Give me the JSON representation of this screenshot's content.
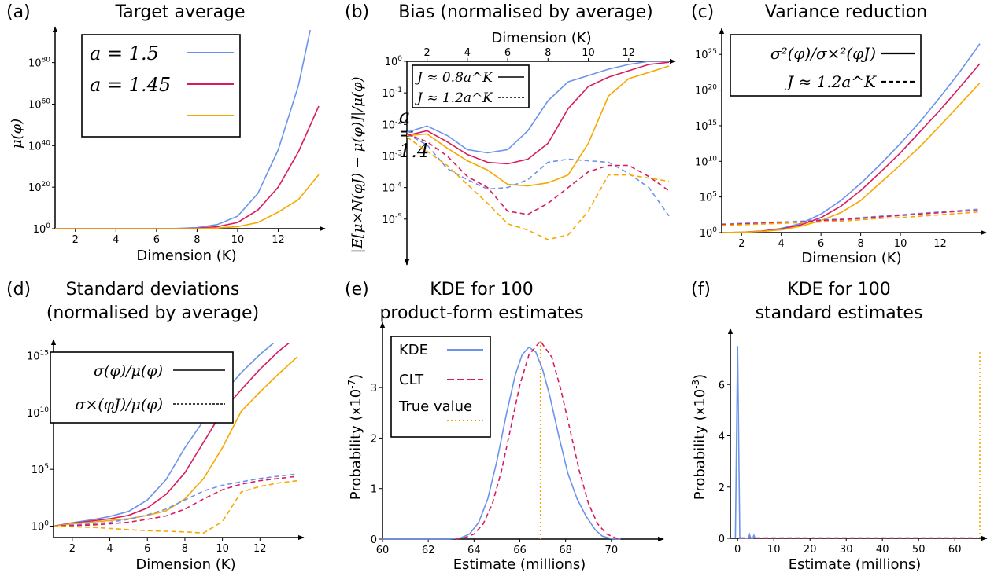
{
  "colors": {
    "blue": "#6b93ec",
    "magenta": "#d81b60",
    "orange": "#f6a800"
  },
  "chart_data": [
    {
      "id": "a",
      "type": "line",
      "panel_label": "(a)",
      "title": "Target average",
      "xlabel": "Dimension (K)",
      "ylabel": "μ(φ)",
      "yscale": "log",
      "xlim": [
        1,
        14
      ],
      "ylim_exp": [
        0,
        95
      ],
      "xticks": [
        "2",
        "4",
        "6",
        "8",
        "10",
        "12"
      ],
      "yticks": [
        {
          "base": "10",
          "exp": "0",
          "v": 0
        },
        {
          "base": "10",
          "exp": "20",
          "v": 20
        },
        {
          "base": "10",
          "exp": "40",
          "v": 40
        },
        {
          "base": "10",
          "exp": "60",
          "v": 60
        },
        {
          "base": "10",
          "exp": "80",
          "v": 80
        }
      ],
      "x": [
        1,
        2,
        3,
        4,
        5,
        6,
        7,
        8,
        9,
        10,
        11,
        12,
        13,
        14
      ],
      "series": [
        {
          "name": "a = 1.5",
          "color": "#6b93ec",
          "dash": "solid",
          "log10_values": [
            0,
            0,
            0,
            0,
            0,
            0,
            0.1,
            0.5,
            2,
            6,
            17,
            38,
            69,
            115
          ]
        },
        {
          "name": "a = 1.45",
          "color": "#d81b60",
          "dash": "solid",
          "log10_values": [
            0,
            0,
            0,
            0,
            0,
            0,
            0,
            0.2,
            1,
            3,
            9,
            20,
            37,
            59
          ]
        },
        {
          "name": "a = 1.4",
          "color": "#f6a800",
          "dash": "solid",
          "log10_values": [
            0,
            0,
            0,
            0,
            0,
            0,
            0,
            0,
            0.3,
            1,
            3,
            8,
            14,
            26
          ]
        }
      ],
      "legend": {
        "position": "top-left",
        "entries": [
          "a = 1.5",
          "a = 1.45",
          "a = 1.4"
        ]
      }
    },
    {
      "id": "b",
      "type": "line",
      "panel_label": "(b)",
      "title": "Bias (normalised by average)",
      "xlabel": "Dimension (K)",
      "xaxis_position": "top",
      "ylabel": "|E[μ×N(φJ) − μ(φ)]|/μ(φ)",
      "yscale": "log",
      "xlim": [
        1,
        14
      ],
      "ylim_exp": [
        -6.3,
        0
      ],
      "xticks": [
        "2",
        "4",
        "6",
        "8",
        "10",
        "12"
      ],
      "yticks": [
        {
          "base": "10",
          "exp": "0",
          "v": 0
        },
        {
          "base": "10",
          "exp": "-1",
          "v": -1
        },
        {
          "base": "10",
          "exp": "-2",
          "v": -2
        },
        {
          "base": "10",
          "exp": "-3",
          "v": -3
        },
        {
          "base": "10",
          "exp": "-4",
          "v": -4
        },
        {
          "base": "10",
          "exp": "-5",
          "v": -5
        }
      ],
      "x": [
        1,
        2,
        3,
        4,
        5,
        6,
        7,
        8,
        9,
        10,
        11,
        12,
        13,
        14
      ],
      "series": [
        {
          "name": "a = 1.5, J ≈ 0.8a^K",
          "color": "#6b93ec",
          "dash": "solid",
          "log10_values": [
            -2.25,
            -2.05,
            -2.35,
            -2.8,
            -2.9,
            -2.8,
            -2.2,
            -1.25,
            -0.65,
            -0.45,
            -0.25,
            -0.1,
            0,
            0
          ]
        },
        {
          "name": "a = 1.45, J ≈ 0.8a^K",
          "color": "#d81b60",
          "dash": "solid",
          "log10_values": [
            -2.35,
            -2.2,
            -2.55,
            -2.95,
            -3.2,
            -3.25,
            -3.1,
            -2.6,
            -1.5,
            -0.8,
            -0.5,
            -0.3,
            -0.1,
            -0.03
          ]
        },
        {
          "name": "a = 1.4, J ≈ 0.8a^K",
          "color": "#f6a800",
          "dash": "solid",
          "log10_values": [
            -2.35,
            -2.3,
            -2.75,
            -3.15,
            -3.45,
            -3.9,
            -3.95,
            -3.85,
            -3.6,
            -2.6,
            -1.1,
            -0.55,
            -0.35,
            -0.15
          ]
        },
        {
          "name": "a = 1.5, J ≈ 1.2a^K",
          "color": "#6b93ec",
          "dash": "dashed",
          "log10_values": [
            -2.3,
            -2.65,
            -3.4,
            -3.75,
            -4.05,
            -4.0,
            -3.75,
            -3.2,
            -3.1,
            -3.15,
            -3.2,
            -3.55,
            -4.0,
            -4.9
          ]
        },
        {
          "name": "a = 1.45, J ≈ 1.2a^K",
          "color": "#d81b60",
          "dash": "dashed",
          "log10_values": [
            -2.3,
            -2.55,
            -3.0,
            -3.65,
            -4.0,
            -4.75,
            -4.85,
            -4.5,
            -4.0,
            -3.5,
            -3.3,
            -3.3,
            -3.65,
            -4.1
          ]
        },
        {
          "name": "a = 1.4, J ≈ 1.2a^K",
          "color": "#f6a800",
          "dash": "dashed",
          "log10_values": [
            -2.4,
            -2.85,
            -3.3,
            -3.9,
            -4.5,
            -5.15,
            -5.35,
            -5.65,
            -5.5,
            -4.75,
            -3.6,
            -3.6,
            -3.7,
            -3.8
          ]
        }
      ],
      "legend": {
        "position": "top-left",
        "entries": [
          "J ≈ 0.8a^K",
          "J ≈ 1.2a^K"
        ]
      }
    },
    {
      "id": "c",
      "type": "line",
      "panel_label": "(c)",
      "title": "Variance reduction",
      "xlabel": "Dimension (K)",
      "yscale": "log",
      "xlim": [
        1,
        14
      ],
      "ylim_exp": [
        0,
        28
      ],
      "xticks": [
        "2",
        "4",
        "6",
        "8",
        "10",
        "12"
      ],
      "yticks": [
        {
          "base": "10",
          "exp": "0",
          "v": 0
        },
        {
          "base": "10",
          "exp": "5",
          "v": 5
        },
        {
          "base": "10",
          "exp": "10",
          "v": 10
        },
        {
          "base": "10",
          "exp": "15",
          "v": 15
        },
        {
          "base": "10",
          "exp": "20",
          "v": 20
        },
        {
          "base": "10",
          "exp": "25",
          "v": 25
        }
      ],
      "x": [
        1,
        2,
        3,
        4,
        5,
        6,
        7,
        8,
        9,
        10,
        11,
        12,
        13,
        14
      ],
      "series": [
        {
          "name": "a = 1.5, σ²(φ)/σ×²(φJ)",
          "color": "#6b93ec",
          "dash": "solid",
          "log10_values": [
            0,
            0.05,
            0.2,
            0.6,
            1.3,
            2.6,
            4.5,
            6.9,
            9.6,
            12.5,
            15.6,
            19,
            22.6,
            26.5
          ]
        },
        {
          "name": "a = 1.45, σ²(φ)/σ×²(φJ)",
          "color": "#d81b60",
          "dash": "solid",
          "log10_values": [
            0,
            0.05,
            0.2,
            0.5,
            1.1,
            2.1,
            3.7,
            5.9,
            8.5,
            11.2,
            14.2,
            17.2,
            20.4,
            23.7
          ]
        },
        {
          "name": "a = 1.4, σ²(φ)/σ×²(φJ)",
          "color": "#f6a800",
          "dash": "solid",
          "log10_values": [
            0,
            0.05,
            0.15,
            0.4,
            0.9,
            1.7,
            2.8,
            4.5,
            7,
            9.5,
            12.1,
            15,
            18,
            21
          ]
        },
        {
          "name": "a = 1.5, J ≈ 1.2a^K",
          "color": "#6b93ec",
          "dash": "dashed",
          "log10_values": [
            1.2,
            1.3,
            1.4,
            1.5,
            1.6,
            1.8,
            1.9,
            2.1,
            2.3,
            2.5,
            2.7,
            2.9,
            3.1,
            3.3
          ]
        },
        {
          "name": "a = 1.45, J ≈ 1.2a^K",
          "color": "#d81b60",
          "dash": "dashed",
          "log10_values": [
            1.1,
            1.2,
            1.3,
            1.4,
            1.5,
            1.7,
            1.8,
            2.0,
            2.2,
            2.4,
            2.6,
            2.8,
            3.0,
            3.1
          ]
        },
        {
          "name": "a = 1.4, J ≈ 1.2a^K",
          "color": "#f6a800",
          "dash": "dashed",
          "log10_values": [
            1.0,
            1.1,
            1.2,
            1.3,
            1.4,
            1.5,
            1.6,
            1.8,
            2.0,
            2.1,
            2.3,
            2.5,
            2.7,
            2.9
          ]
        }
      ],
      "legend": {
        "position": "top-left",
        "entries": [
          "σ²(φ)/σ×²(φJ)",
          "J ≈ 1.2a^K"
        ]
      }
    },
    {
      "id": "d",
      "type": "line",
      "panel_label": "(d)",
      "title": "Standard deviations",
      "subtitle": "(normalised by average)",
      "xlabel": "Dimension (K)",
      "yscale": "log",
      "xlim": [
        1,
        14
      ],
      "ylim_exp": [
        -1,
        16
      ],
      "xticks": [
        "2",
        "4",
        "6",
        "8",
        "10",
        "12"
      ],
      "yticks": [
        {
          "base": "10",
          "exp": "0",
          "v": 0
        },
        {
          "base": "10",
          "exp": "5",
          "v": 5
        },
        {
          "base": "10",
          "exp": "10",
          "v": 10
        },
        {
          "base": "10",
          "exp": "15",
          "v": 15
        }
      ],
      "x": [
        1,
        2,
        3,
        4,
        5,
        6,
        7,
        8,
        9,
        10,
        11,
        12,
        13,
        14
      ],
      "series": [
        {
          "name": "a = 1.5, σ(φ)/μ(φ)",
          "color": "#6b93ec",
          "dash": "solid",
          "log10_values": [
            0,
            0.3,
            0.55,
            0.85,
            1.3,
            2.3,
            4.1,
            6.9,
            9.3,
            11.6,
            13.5,
            15.1,
            16.5,
            17.6
          ]
        },
        {
          "name": "a = 1.45, σ(φ)/μ(φ)",
          "color": "#d81b60",
          "dash": "solid",
          "log10_values": [
            0,
            0.25,
            0.45,
            0.65,
            0.95,
            1.6,
            2.8,
            4.7,
            7.4,
            10.1,
            12.0,
            13.8,
            15.4,
            16.7
          ]
        },
        {
          "name": "a = 1.4, σ(φ)/μ(φ)",
          "color": "#f6a800",
          "dash": "solid",
          "log10_values": [
            0,
            0.2,
            0.35,
            0.5,
            0.65,
            0.95,
            1.35,
            2.4,
            4.2,
            6.9,
            10.1,
            11.8,
            13.4,
            14.9
          ]
        },
        {
          "name": "a = 1.5, σ×(φJ)/μ(φ)",
          "color": "#6b93ec",
          "dash": "dashed",
          "log10_values": [
            0,
            0.1,
            0.2,
            0.35,
            0.6,
            1.0,
            1.5,
            2.3,
            3.1,
            3.6,
            3.9,
            4.2,
            4.4,
            4.6
          ]
        },
        {
          "name": "a = 1.45, σ×(φJ)/μ(φ)",
          "color": "#d81b60",
          "dash": "dashed",
          "log10_values": [
            0,
            0.05,
            0.1,
            0.2,
            0.35,
            0.6,
            0.9,
            1.5,
            2.4,
            3.2,
            3.7,
            4.0,
            4.2,
            4.4
          ]
        },
        {
          "name": "a = 1.4, σ×(φJ)/μ(φ)",
          "color": "#f6a800",
          "dash": "dashed",
          "log10_values": [
            0,
            -0.05,
            -0.1,
            -0.2,
            -0.3,
            -0.4,
            -0.45,
            -0.5,
            -0.6,
            0.4,
            3.0,
            3.5,
            3.8,
            4.0
          ]
        }
      ],
      "legend": {
        "position": "top-left",
        "entries": [
          "σ(φ)/μ(φ)",
          "σ×(φJ)/μ(φ)"
        ]
      }
    },
    {
      "id": "e",
      "type": "line",
      "panel_label": "(e)",
      "title": "KDE for 100",
      "subtitle": "product-form estimates",
      "xlabel": "Estimate (millions)",
      "ylabel": "Probability (x10-7)",
      "xlim": [
        60,
        72
      ],
      "ylim": [
        0,
        4.2
      ],
      "xticks": [
        "60",
        "62",
        "64",
        "66",
        "68",
        "70"
      ],
      "yticks": [
        "0",
        "1",
        "2",
        "3"
      ],
      "true_value": 66.9,
      "series": [
        {
          "name": "KDE",
          "color": "#6b93ec",
          "dash": "solid",
          "x": [
            62.8,
            63.4,
            63.8,
            64.2,
            64.6,
            65.0,
            65.4,
            65.8,
            66.1,
            66.4,
            66.7,
            67.0,
            67.3,
            67.7,
            68.1,
            68.5,
            68.9,
            69.3,
            69.6,
            70.0,
            70.4
          ],
          "values": [
            0,
            0.02,
            0.1,
            0.33,
            0.8,
            1.55,
            2.45,
            3.25,
            3.65,
            3.8,
            3.7,
            3.35,
            2.85,
            2.05,
            1.3,
            0.8,
            0.45,
            0.18,
            0.06,
            0.01,
            0
          ]
        },
        {
          "name": "CLT",
          "color": "#d81b60",
          "dash": "dashed",
          "x": [
            63.2,
            63.6,
            64.0,
            64.4,
            64.8,
            65.2,
            65.6,
            66.0,
            66.4,
            66.9,
            67.4,
            67.8,
            68.2,
            68.6,
            69.0,
            69.4,
            69.8,
            70.3
          ],
          "values": [
            0,
            0.03,
            0.1,
            0.3,
            0.7,
            1.35,
            2.2,
            3.05,
            3.65,
            3.92,
            3.6,
            2.95,
            2.15,
            1.35,
            0.7,
            0.3,
            0.1,
            0
          ]
        },
        {
          "name": "True value",
          "color": "#f6a800",
          "dash": "dotted"
        }
      ],
      "legend": {
        "position": "top-left",
        "entries": [
          "KDE",
          "CLT",
          "True value"
        ]
      }
    },
    {
      "id": "f",
      "type": "line",
      "panel_label": "(f)",
      "title": "KDE for 100",
      "subtitle": "standard estimates",
      "xlabel": "Estimate (millions)",
      "ylabel": "Probability (x10-3)",
      "xlim": [
        -2,
        68
      ],
      "ylim": [
        0,
        8
      ],
      "xticks": [
        "0",
        "10",
        "20",
        "30",
        "40",
        "50",
        "60"
      ],
      "yticks": [
        "0",
        "2",
        "4",
        "6"
      ],
      "true_value": 66.9,
      "series": [
        {
          "name": "KDE",
          "color": "#6b93ec",
          "dash": "solid",
          "x": [
            -0.6,
            0,
            0.6,
            3.0,
            3.3,
            3.6,
            4.2,
            4.5,
            4.8
          ],
          "values": [
            0,
            7.5,
            0,
            0,
            0.15,
            0,
            0,
            0.12,
            0
          ]
        }
      ]
    }
  ]
}
